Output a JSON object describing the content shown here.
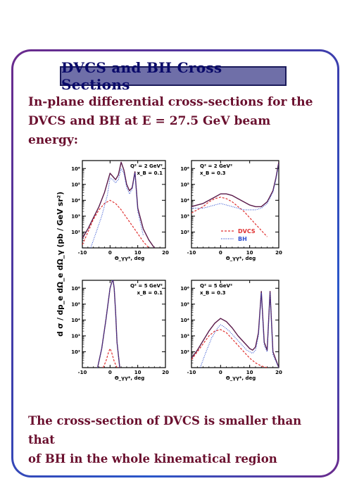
{
  "title": "DVCS and BH Cross Sections",
  "subtitle_line1": "In-plane differential cross-sections for the",
  "subtitle_line2": "DVCS and BH at E = 27.5 GeV beam energy:",
  "footer_line1": "The cross-section of DVCS is smaller than that",
  "footer_line2": "of BH in the whole kinematical region",
  "ylabel": "d σ / dp_e dΩ_e dΩ_γ (pb / GeV sr²)",
  "colors": {
    "total": "#5a1a4a",
    "dvcs": "#e03030",
    "bh": "#3050d0",
    "text": "#6a0f2e"
  },
  "chart_data": [
    {
      "type": "line",
      "panel": "top-left",
      "annotation": [
        "Q² = 2 GeV²",
        "x_B = 0.1"
      ],
      "xlabel": "Θ_γγ*, deg",
      "xlim": [
        -10,
        20
      ],
      "ylim_log10": [
        1,
        6.5
      ],
      "xticks": [
        -10,
        0,
        10,
        20
      ],
      "yticks": [
        "10²",
        "10³",
        "10⁴",
        "10⁵",
        "10⁶"
      ],
      "series": [
        {
          "style": "total",
          "x": [
            -10,
            -8,
            -6,
            -4,
            -2,
            0,
            1,
            2,
            3,
            4,
            5,
            6,
            7,
            8,
            9,
            10,
            12,
            14,
            16
          ],
          "log10y": [
            1.6,
            2.2,
            2.9,
            3.6,
            4.5,
            5.7,
            5.5,
            5.3,
            5.6,
            6.4,
            5.9,
            5.0,
            4.6,
            4.8,
            5.8,
            3.5,
            2.2,
            1.5,
            1.0
          ]
        },
        {
          "style": "dvcs",
          "x": [
            -10,
            -8,
            -6,
            -4,
            -2,
            0,
            2,
            4,
            6,
            8,
            10,
            12,
            14
          ],
          "log10y": [
            1.2,
            2.0,
            2.8,
            3.4,
            3.8,
            4.0,
            3.8,
            3.4,
            2.9,
            2.4,
            1.9,
            1.4,
            1.0
          ]
        },
        {
          "style": "bh",
          "x": [
            -7,
            -5,
            -3,
            -1,
            0,
            1,
            2,
            3,
            4,
            5,
            6,
            7,
            8,
            9,
            10,
            12
          ],
          "log10y": [
            1.0,
            2.0,
            3.0,
            4.3,
            5.4,
            5.3,
            5.1,
            5.3,
            6.0,
            5.7,
            4.8,
            4.4,
            4.7,
            5.7,
            3.3,
            1.8
          ]
        }
      ]
    },
    {
      "type": "line",
      "panel": "top-right",
      "annotation": [
        "Q² = 2 GeV²",
        "x_B = 0.3"
      ],
      "xlabel": "Θ_γγ*, deg",
      "xlim": [
        -10,
        20
      ],
      "ylim_log10": [
        1,
        6.5
      ],
      "xticks": [
        -10,
        0,
        10,
        20
      ],
      "yticks": [
        "10²",
        "10³",
        "10⁴",
        "10⁵",
        "10⁶"
      ],
      "legend": [
        "DVCS",
        "BH"
      ],
      "series": [
        {
          "style": "total",
          "x": [
            -10,
            -8,
            -6,
            -4,
            -2,
            0,
            2,
            4,
            6,
            8,
            10,
            12,
            14,
            16,
            18,
            19,
            20
          ],
          "log10y": [
            3.6,
            3.7,
            3.8,
            4.0,
            4.2,
            4.4,
            4.4,
            4.3,
            4.1,
            3.9,
            3.7,
            3.6,
            3.6,
            3.9,
            4.6,
            5.4,
            6.4
          ]
        },
        {
          "style": "dvcs",
          "x": [
            -10,
            -8,
            -6,
            -4,
            -2,
            0,
            2,
            4,
            6,
            8,
            10,
            12,
            14,
            16
          ],
          "log10y": [
            3.2,
            3.4,
            3.6,
            3.9,
            4.1,
            4.2,
            4.1,
            3.9,
            3.6,
            3.3,
            2.9,
            2.5,
            2.1,
            1.7
          ]
        },
        {
          "style": "bh",
          "x": [
            -10,
            -8,
            -6,
            -4,
            -2,
            0,
            2,
            4,
            6,
            8,
            10,
            12,
            14,
            16,
            18,
            19,
            20
          ],
          "log10y": [
            3.5,
            3.5,
            3.5,
            3.6,
            3.7,
            3.8,
            3.7,
            3.6,
            3.5,
            3.4,
            3.4,
            3.4,
            3.5,
            3.8,
            4.5,
            5.3,
            6.3
          ]
        }
      ]
    },
    {
      "type": "line",
      "panel": "bottom-left",
      "annotation": [
        "Q² = 5 GeV²",
        "x_B = 0.1"
      ],
      "xlabel": "Θ_γγ*, deg",
      "xlim": [
        -10,
        20
      ],
      "ylim_log10": [
        1,
        6.5
      ],
      "xticks": [
        -10,
        0,
        10,
        20
      ],
      "yticks": [
        "10²",
        "10³",
        "10⁴",
        "10⁵",
        "10⁶"
      ],
      "series": [
        {
          "style": "total",
          "x": [
            -4.5,
            -3,
            -1.5,
            0,
            1,
            1.5,
            2,
            2.5,
            3.5
          ],
          "log10y": [
            1.0,
            2.2,
            4.0,
            6.0,
            6.6,
            6.0,
            4.5,
            2.6,
            1.0
          ]
        },
        {
          "style": "dvcs",
          "x": [
            -2.5,
            -1.5,
            -0.5,
            0,
            0.5,
            1.5,
            2.5
          ],
          "log10y": [
            1.0,
            1.4,
            2.0,
            2.2,
            2.0,
            1.4,
            1.0
          ]
        },
        {
          "style": "bh",
          "x": [
            -4.5,
            -3,
            -1.5,
            0,
            1,
            1.5,
            2,
            2.5,
            3.5
          ],
          "log10y": [
            1.0,
            2.2,
            4.0,
            6.0,
            6.6,
            6.0,
            4.5,
            2.6,
            1.0
          ]
        }
      ]
    },
    {
      "type": "line",
      "panel": "bottom-right",
      "annotation": [
        "Q² = 5 GeV²",
        "x_B = 0.3"
      ],
      "xlabel": "Θ_γγ*, deg",
      "xlim": [
        -10,
        20
      ],
      "ylim_log10": [
        1,
        6.5
      ],
      "xticks": [
        -10,
        0,
        10,
        20
      ],
      "yticks": [
        "10²",
        "10³",
        "10⁴",
        "10⁵",
        "10⁶"
      ],
      "series": [
        {
          "style": "total",
          "x": [
            -10,
            -8,
            -6,
            -4,
            -2,
            0,
            2,
            4,
            6,
            8,
            10,
            11,
            12,
            13,
            14,
            15,
            16,
            17,
            18,
            20
          ],
          "log10y": [
            1.6,
            2.1,
            2.7,
            3.3,
            3.8,
            4.1,
            3.9,
            3.5,
            3.0,
            2.6,
            2.2,
            2.1,
            2.3,
            3.2,
            5.8,
            2.6,
            2.1,
            5.8,
            2.0,
            1.0
          ]
        },
        {
          "style": "dvcs",
          "x": [
            -10,
            -8,
            -6,
            -4,
            -2,
            0,
            2,
            4,
            6,
            8,
            10,
            12,
            14,
            16
          ],
          "log10y": [
            1.5,
            2.0,
            2.5,
            3.0,
            3.3,
            3.4,
            3.2,
            2.8,
            2.4,
            2.0,
            1.6,
            1.3,
            1.1,
            1.0
          ]
        },
        {
          "style": "bh",
          "x": [
            -7,
            -5,
            -3,
            -1,
            0,
            1,
            3,
            5,
            7,
            9,
            11,
            12,
            13,
            14,
            15,
            16,
            17,
            18,
            20
          ],
          "log10y": [
            1.0,
            2.0,
            2.9,
            3.5,
            3.7,
            3.6,
            3.3,
            2.9,
            2.5,
            2.1,
            1.9,
            2.1,
            3.0,
            5.7,
            2.4,
            2.0,
            5.7,
            1.8,
            1.0
          ]
        }
      ]
    }
  ]
}
